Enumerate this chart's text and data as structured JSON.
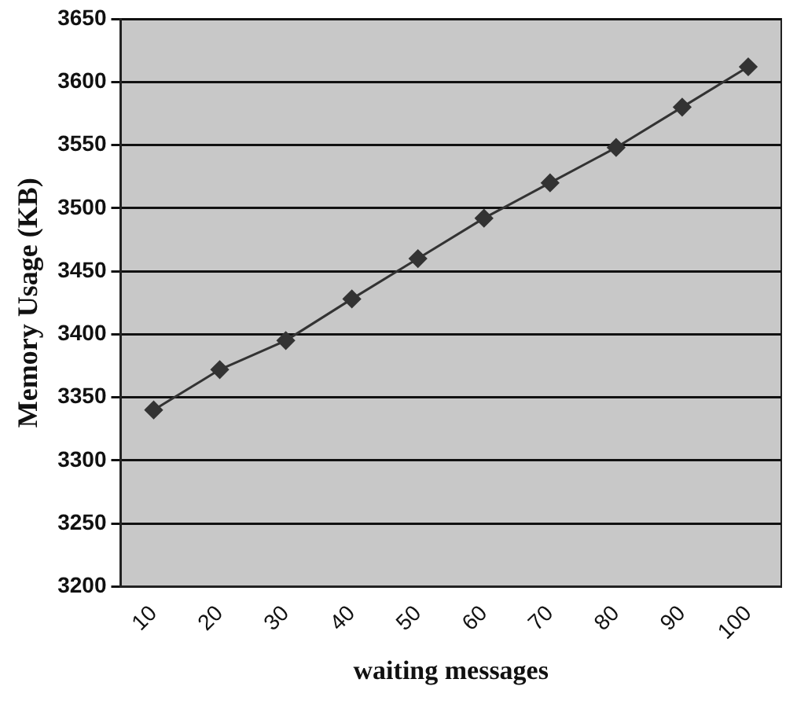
{
  "chart_data": {
    "type": "line",
    "xlabel": "waiting messages",
    "ylabel": "Memory Usage (KB)",
    "categories": [
      "10",
      "20",
      "30",
      "40",
      "50",
      "60",
      "70",
      "80",
      "90",
      "100"
    ],
    "series": [
      {
        "color": "#333333",
        "values": [
          3340,
          3372,
          3395,
          3428,
          3460,
          3492,
          3520,
          3548,
          3580,
          3612
        ]
      }
    ],
    "ylim": [
      3200,
      3650
    ],
    "yticks": [
      3200,
      3250,
      3300,
      3350,
      3400,
      3450,
      3500,
      3550,
      3600,
      3650
    ],
    "grid": "y",
    "legend": false,
    "marker": "diamond",
    "line_style": "solid"
  }
}
